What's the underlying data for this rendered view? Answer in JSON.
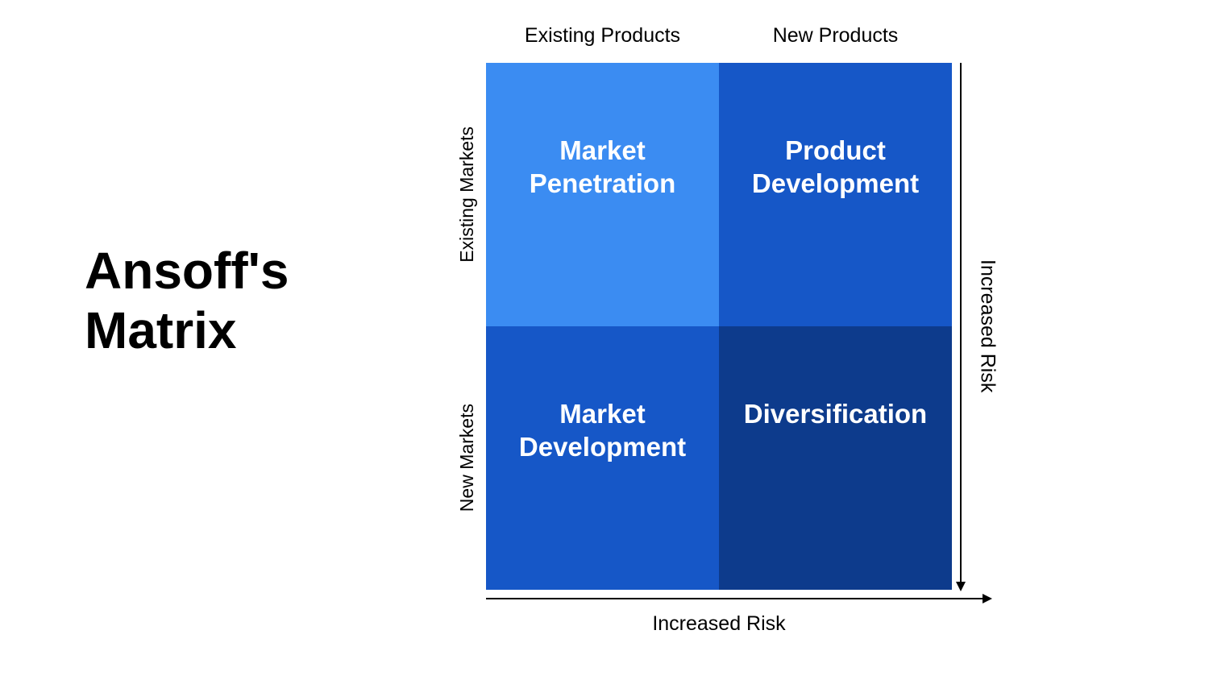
{
  "title": "Ansoff's\nMatrix",
  "column_headers": [
    "Existing Products",
    "New Products"
  ],
  "row_labels": [
    "Existing Markets",
    "New Markets"
  ],
  "cells": [
    {
      "label": "Market\nPenetration",
      "bg_color": "#3b8cf2"
    },
    {
      "label": "Product\nDevelopment",
      "bg_color": "#1657c7"
    },
    {
      "label": "Market\nDevelopment",
      "bg_color": "#1657c7"
    },
    {
      "label": "Diversification",
      "bg_color": "#0d3b8c"
    }
  ],
  "axis_right_label": "Increased Risk",
  "axis_bottom_label": "Increased Risk",
  "text_color": "#ffffff",
  "title_fontsize": 64,
  "header_fontsize": 25,
  "row_label_fontsize": 23,
  "cell_fontsize": 33,
  "axis_label_fontsize": 25,
  "background_color": "#ffffff",
  "arrow_color": "#000000"
}
